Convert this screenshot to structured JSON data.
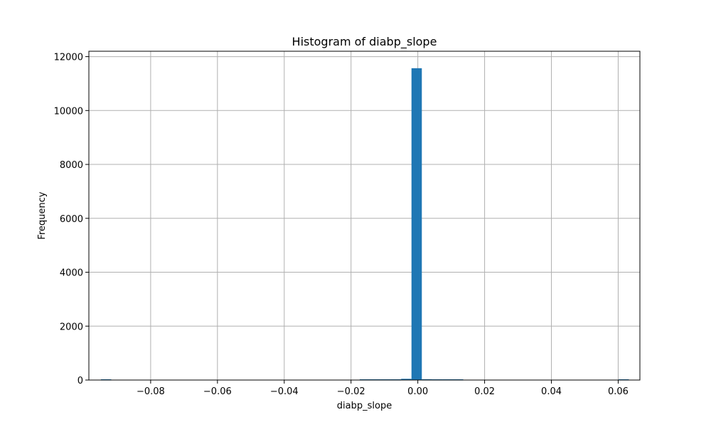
{
  "chart_data": {
    "type": "bar",
    "title": "Histogram of diabp_slope",
    "xlabel": "diabp_slope",
    "ylabel": "Frequency",
    "xlim": [
      -0.0985,
      0.0665
    ],
    "ylim": [
      0,
      12200
    ],
    "xticks": [
      -0.08,
      -0.06,
      -0.04,
      -0.02,
      0.0,
      0.02,
      0.04,
      0.06
    ],
    "xtick_labels": [
      "−0.08",
      "−0.06",
      "−0.04",
      "−0.02",
      "0.00",
      "0.02",
      "0.04",
      "0.06"
    ],
    "yticks": [
      0,
      2000,
      4000,
      6000,
      8000,
      10000,
      12000
    ],
    "ytick_labels": [
      "0",
      "2000",
      "4000",
      "6000",
      "8000",
      "10000",
      "12000"
    ],
    "grid": true,
    "bar_color": "#1f77b4",
    "bins": [
      {
        "x0": -0.0949,
        "x1": -0.0918,
        "count": 1
      },
      {
        "x0": -0.0918,
        "x1": -0.0887,
        "count": 0
      },
      {
        "x0": -0.0887,
        "x1": -0.0856,
        "count": 0
      },
      {
        "x0": -0.0856,
        "x1": -0.0825,
        "count": 0
      },
      {
        "x0": -0.0825,
        "x1": -0.0794,
        "count": 0
      },
      {
        "x0": -0.0794,
        "x1": -0.0763,
        "count": 0
      },
      {
        "x0": -0.0763,
        "x1": -0.0732,
        "count": 0
      },
      {
        "x0": -0.0732,
        "x1": -0.0701,
        "count": 0
      },
      {
        "x0": -0.0701,
        "x1": -0.067,
        "count": 0
      },
      {
        "x0": -0.067,
        "x1": -0.0639,
        "count": 0
      },
      {
        "x0": -0.0639,
        "x1": -0.0608,
        "count": 0
      },
      {
        "x0": -0.0608,
        "x1": -0.0577,
        "count": 0
      },
      {
        "x0": -0.0577,
        "x1": -0.0546,
        "count": 0
      },
      {
        "x0": -0.0546,
        "x1": -0.0515,
        "count": 0
      },
      {
        "x0": -0.0515,
        "x1": -0.0484,
        "count": 0
      },
      {
        "x0": -0.0484,
        "x1": -0.0453,
        "count": 0
      },
      {
        "x0": -0.0453,
        "x1": -0.0422,
        "count": 0
      },
      {
        "x0": -0.0422,
        "x1": -0.0391,
        "count": 0
      },
      {
        "x0": -0.0391,
        "x1": -0.036,
        "count": 0
      },
      {
        "x0": -0.036,
        "x1": -0.0329,
        "count": 0
      },
      {
        "x0": -0.0329,
        "x1": -0.0298,
        "count": 0
      },
      {
        "x0": -0.0298,
        "x1": -0.0267,
        "count": 0
      },
      {
        "x0": -0.0267,
        "x1": -0.0236,
        "count": 0
      },
      {
        "x0": -0.0236,
        "x1": -0.0205,
        "count": 0
      },
      {
        "x0": -0.0205,
        "x1": -0.0174,
        "count": 0
      },
      {
        "x0": -0.0174,
        "x1": -0.0143,
        "count": 1
      },
      {
        "x0": -0.0143,
        "x1": -0.0112,
        "count": 2
      },
      {
        "x0": -0.0112,
        "x1": -0.0081,
        "count": 4
      },
      {
        "x0": -0.0081,
        "x1": -0.005,
        "count": 10
      },
      {
        "x0": -0.005,
        "x1": -0.0019,
        "count": 45
      },
      {
        "x0": -0.0019,
        "x1": 0.0012,
        "count": 11570
      },
      {
        "x0": 0.0012,
        "x1": 0.0043,
        "count": 30
      },
      {
        "x0": 0.0043,
        "x1": 0.0074,
        "count": 8
      },
      {
        "x0": 0.0074,
        "x1": 0.0105,
        "count": 3
      },
      {
        "x0": 0.0105,
        "x1": 0.0136,
        "count": 1
      },
      {
        "x0": 0.0136,
        "x1": 0.0167,
        "count": 0
      },
      {
        "x0": 0.0167,
        "x1": 0.0198,
        "count": 0
      },
      {
        "x0": 0.0198,
        "x1": 0.0229,
        "count": 0
      },
      {
        "x0": 0.0229,
        "x1": 0.026,
        "count": 0
      },
      {
        "x0": 0.026,
        "x1": 0.0291,
        "count": 0
      },
      {
        "x0": 0.0291,
        "x1": 0.0322,
        "count": 0
      },
      {
        "x0": 0.0322,
        "x1": 0.0353,
        "count": 0
      },
      {
        "x0": 0.0353,
        "x1": 0.0384,
        "count": 0
      },
      {
        "x0": 0.0384,
        "x1": 0.0415,
        "count": 0
      },
      {
        "x0": 0.0415,
        "x1": 0.0446,
        "count": 0
      },
      {
        "x0": 0.0446,
        "x1": 0.0477,
        "count": 0
      },
      {
        "x0": 0.0477,
        "x1": 0.0508,
        "count": 0
      },
      {
        "x0": 0.0508,
        "x1": 0.0539,
        "count": 0
      },
      {
        "x0": 0.0539,
        "x1": 0.057,
        "count": 0
      },
      {
        "x0": 0.057,
        "x1": 0.0601,
        "count": 0
      },
      {
        "x0": 0.0601,
        "x1": 0.0632,
        "count": 1
      }
    ]
  }
}
